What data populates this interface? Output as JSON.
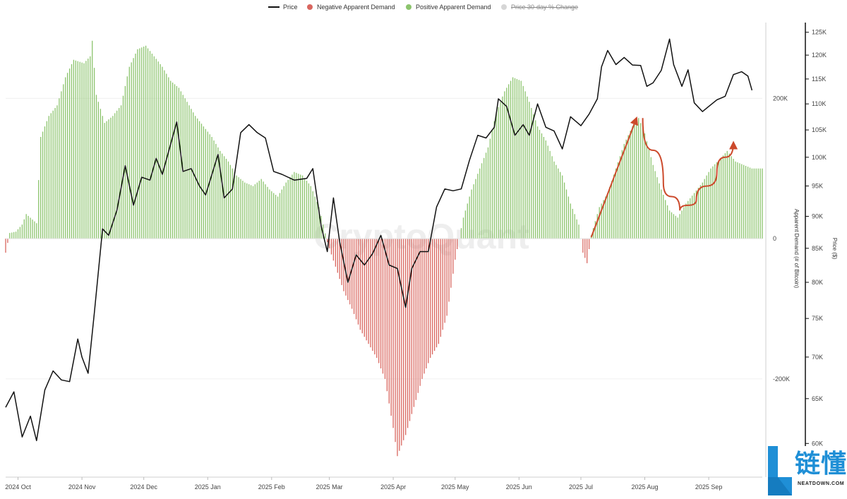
{
  "legend": {
    "price": "Price",
    "negative": "Negative Apparent Demand",
    "positive": "Positive Apparent Demand",
    "change": "Price 30-day % Change"
  },
  "colors": {
    "price": "#111111",
    "negative": "#d9665f",
    "positive": "#8cc46d",
    "change": "#cccccc",
    "annotation": "#cc4a2c",
    "brand": "#1f8fd6"
  },
  "watermark": "CryptoQuant",
  "brand": {
    "cn": "链懂",
    "en": "NEATDOWN.COM"
  },
  "chart_data": {
    "type": "bar+line",
    "x_range": [
      "2024-09-25",
      "2025-09-27"
    ],
    "x_ticks": [
      "2024 Oct",
      "2024 Nov",
      "2024 Dec",
      "2025 Jan",
      "2025 Feb",
      "2025 Mar",
      "2025 Apr",
      "2025 May",
      "2025 Jun",
      "2025 Jul",
      "2025 Aug",
      "2025 Sep"
    ],
    "left_axis": {
      "label": "Apparent Demand (# of Bitcoin)",
      "ticks": [
        "200K",
        "0",
        "-200K"
      ],
      "tick_values": [
        200000,
        0,
        -200000
      ],
      "range": [
        -340000,
        310000
      ]
    },
    "right_axis": {
      "label": "Price ($)",
      "ticks": [
        "125K",
        "120K",
        "115K",
        "110K",
        "105K",
        "100K",
        "95K",
        "90K",
        "85K",
        "80K",
        "75K",
        "70K",
        "65K",
        "60K"
      ],
      "tick_values": [
        125000,
        120000,
        115000,
        110000,
        105000,
        100000,
        95000,
        90000,
        85000,
        80000,
        75000,
        70000,
        65000,
        60000
      ],
      "scale": "log",
      "range": [
        56500,
        127500
      ]
    },
    "series": [
      {
        "name": "Price",
        "kind": "line",
        "points": [
          [
            "2024-09-25",
            64000
          ],
          [
            "2024-09-29",
            65800
          ],
          [
            "2024-10-03",
            60700
          ],
          [
            "2024-10-07",
            63000
          ],
          [
            "2024-10-10",
            60300
          ],
          [
            "2024-10-14",
            66000
          ],
          [
            "2024-10-18",
            68300
          ],
          [
            "2024-10-22",
            67200
          ],
          [
            "2024-10-26",
            67000
          ],
          [
            "2024-10-30",
            72300
          ],
          [
            "2024-11-01",
            70000
          ],
          [
            "2024-11-04",
            68000
          ],
          [
            "2024-11-07",
            75700
          ],
          [
            "2024-11-11",
            88000
          ],
          [
            "2024-11-14",
            87000
          ],
          [
            "2024-11-18",
            91000
          ],
          [
            "2024-11-22",
            98500
          ],
          [
            "2024-11-26",
            91800
          ],
          [
            "2024-11-30",
            96500
          ],
          [
            "2024-12-04",
            96000
          ],
          [
            "2024-12-07",
            99800
          ],
          [
            "2024-12-10",
            97000
          ],
          [
            "2024-12-13",
            101000
          ],
          [
            "2024-12-17",
            106500
          ],
          [
            "2024-12-20",
            97500
          ],
          [
            "2024-12-24",
            98000
          ],
          [
            "2024-12-28",
            95000
          ],
          [
            "2024-12-31",
            93500
          ],
          [
            "2025-01-06",
            100500
          ],
          [
            "2025-01-09",
            93000
          ],
          [
            "2025-01-13",
            94500
          ],
          [
            "2025-01-17",
            104500
          ],
          [
            "2025-01-21",
            106000
          ],
          [
            "2025-01-25",
            104500
          ],
          [
            "2025-01-29",
            103500
          ],
          [
            "2025-02-02",
            97500
          ],
          [
            "2025-02-06",
            97000
          ],
          [
            "2025-02-12",
            96000
          ],
          [
            "2025-02-18",
            96300
          ],
          [
            "2025-02-21",
            98000
          ],
          [
            "2025-02-25",
            88500
          ],
          [
            "2025-02-28",
            84500
          ],
          [
            "2025-03-03",
            93000
          ],
          [
            "2025-03-06",
            86000
          ],
          [
            "2025-03-10",
            80000
          ],
          [
            "2025-03-14",
            84000
          ],
          [
            "2025-03-18",
            82500
          ],
          [
            "2025-03-22",
            84200
          ],
          [
            "2025-03-26",
            87000
          ],
          [
            "2025-03-30",
            82500
          ],
          [
            "2025-04-03",
            82000
          ],
          [
            "2025-04-07",
            76500
          ],
          [
            "2025-04-10",
            82000
          ],
          [
            "2025-04-14",
            84500
          ],
          [
            "2025-04-18",
            84500
          ],
          [
            "2025-04-22",
            91500
          ],
          [
            "2025-04-26",
            94500
          ],
          [
            "2025-04-30",
            94200
          ],
          [
            "2025-05-04",
            94500
          ],
          [
            "2025-05-08",
            99500
          ],
          [
            "2025-05-12",
            104000
          ],
          [
            "2025-05-16",
            103500
          ],
          [
            "2025-05-20",
            105500
          ],
          [
            "2025-05-22",
            111000
          ],
          [
            "2025-05-26",
            109500
          ],
          [
            "2025-05-30",
            104000
          ],
          [
            "2025-06-03",
            106000
          ],
          [
            "2025-06-06",
            104000
          ],
          [
            "2025-06-10",
            110000
          ],
          [
            "2025-06-14",
            105500
          ],
          [
            "2025-06-18",
            104800
          ],
          [
            "2025-06-22",
            101500
          ],
          [
            "2025-06-26",
            107500
          ],
          [
            "2025-07-01",
            105800
          ],
          [
            "2025-07-05",
            108000
          ],
          [
            "2025-07-09",
            111000
          ],
          [
            "2025-07-11",
            117500
          ],
          [
            "2025-07-14",
            121000
          ],
          [
            "2025-07-18",
            118000
          ],
          [
            "2025-07-22",
            119500
          ],
          [
            "2025-07-26",
            117900
          ],
          [
            "2025-07-30",
            117800
          ],
          [
            "2025-08-02",
            113500
          ],
          [
            "2025-08-05",
            114200
          ],
          [
            "2025-08-09",
            116800
          ],
          [
            "2025-08-13",
            123500
          ],
          [
            "2025-08-15",
            118000
          ],
          [
            "2025-08-19",
            113500
          ],
          [
            "2025-08-22",
            116900
          ],
          [
            "2025-08-25",
            110200
          ],
          [
            "2025-08-29",
            108500
          ],
          [
            "2025-09-01",
            109500
          ],
          [
            "2025-09-05",
            110800
          ],
          [
            "2025-09-09",
            111500
          ],
          [
            "2025-09-13",
            115900
          ],
          [
            "2025-09-17",
            116500
          ],
          [
            "2025-09-20",
            115600
          ],
          [
            "2025-09-22",
            112700
          ]
        ]
      },
      {
        "name": "Apparent Demand (30-day)",
        "kind": "bar",
        "positive_series": "Positive Apparent Demand",
        "negative_series": "Negative Apparent Demand",
        "points": [
          [
            "2024-09-25",
            -20000
          ],
          [
            "2024-09-27",
            8000
          ],
          [
            "2024-09-30",
            10000
          ],
          [
            "2024-10-03",
            20000
          ],
          [
            "2024-10-05",
            35000
          ],
          [
            "2024-10-10",
            22000
          ],
          [
            "2024-10-12",
            145000
          ],
          [
            "2024-10-16",
            175000
          ],
          [
            "2024-10-20",
            190000
          ],
          [
            "2024-10-24",
            230000
          ],
          [
            "2024-10-28",
            255000
          ],
          [
            "2024-11-02",
            250000
          ],
          [
            "2024-11-05",
            260000
          ],
          [
            "2024-11-06",
            282000
          ],
          [
            "2024-11-08",
            205000
          ],
          [
            "2024-11-12",
            165000
          ],
          [
            "2024-11-16",
            175000
          ],
          [
            "2024-11-20",
            190000
          ],
          [
            "2024-11-24",
            245000
          ],
          [
            "2024-11-28",
            270000
          ],
          [
            "2024-12-02",
            275000
          ],
          [
            "2024-12-06",
            260000
          ],
          [
            "2024-12-10",
            245000
          ],
          [
            "2024-12-14",
            225000
          ],
          [
            "2024-12-18",
            215000
          ],
          [
            "2024-12-22",
            195000
          ],
          [
            "2024-12-26",
            175000
          ],
          [
            "2024-12-30",
            160000
          ],
          [
            "2025-01-03",
            145000
          ],
          [
            "2025-01-07",
            125000
          ],
          [
            "2025-01-11",
            110000
          ],
          [
            "2025-01-15",
            90000
          ],
          [
            "2025-01-19",
            80000
          ],
          [
            "2025-01-23",
            75000
          ],
          [
            "2025-01-27",
            85000
          ],
          [
            "2025-01-31",
            70000
          ],
          [
            "2025-02-04",
            60000
          ],
          [
            "2025-02-08",
            80000
          ],
          [
            "2025-02-12",
            95000
          ],
          [
            "2025-02-16",
            90000
          ],
          [
            "2025-02-20",
            75000
          ],
          [
            "2025-02-24",
            45000
          ],
          [
            "2025-02-28",
            -5000
          ],
          [
            "2025-03-04",
            -40000
          ],
          [
            "2025-03-08",
            -75000
          ],
          [
            "2025-03-12",
            -100000
          ],
          [
            "2025-03-16",
            -130000
          ],
          [
            "2025-03-20",
            -150000
          ],
          [
            "2025-03-24",
            -170000
          ],
          [
            "2025-03-28",
            -200000
          ],
          [
            "2025-04-01",
            -270000
          ],
          [
            "2025-04-03",
            -310000
          ],
          [
            "2025-04-07",
            -280000
          ],
          [
            "2025-04-11",
            -240000
          ],
          [
            "2025-04-15",
            -200000
          ],
          [
            "2025-04-19",
            -170000
          ],
          [
            "2025-04-23",
            -150000
          ],
          [
            "2025-04-27",
            -110000
          ],
          [
            "2025-05-01",
            -30000
          ],
          [
            "2025-05-05",
            30000
          ],
          [
            "2025-05-09",
            70000
          ],
          [
            "2025-05-13",
            100000
          ],
          [
            "2025-05-17",
            130000
          ],
          [
            "2025-05-21",
            180000
          ],
          [
            "2025-05-25",
            210000
          ],
          [
            "2025-05-29",
            230000
          ],
          [
            "2025-06-02",
            225000
          ],
          [
            "2025-06-06",
            195000
          ],
          [
            "2025-06-10",
            160000
          ],
          [
            "2025-06-14",
            140000
          ],
          [
            "2025-06-18",
            110000
          ],
          [
            "2025-06-22",
            90000
          ],
          [
            "2025-06-26",
            50000
          ],
          [
            "2025-06-30",
            20000
          ],
          [
            "2025-07-02",
            -20000
          ],
          [
            "2025-07-04",
            -35000
          ],
          [
            "2025-07-06",
            5000
          ],
          [
            "2025-07-10",
            45000
          ],
          [
            "2025-07-14",
            65000
          ],
          [
            "2025-07-18",
            100000
          ],
          [
            "2025-07-22",
            135000
          ],
          [
            "2025-07-26",
            160000
          ],
          [
            "2025-07-29",
            172000
          ],
          [
            "2025-08-01",
            150000
          ],
          [
            "2025-08-05",
            105000
          ],
          [
            "2025-08-09",
            70000
          ],
          [
            "2025-08-13",
            40000
          ],
          [
            "2025-08-17",
            30000
          ],
          [
            "2025-08-21",
            50000
          ],
          [
            "2025-08-25",
            65000
          ],
          [
            "2025-08-29",
            80000
          ],
          [
            "2025-09-02",
            100000
          ],
          [
            "2025-09-06",
            112000
          ],
          [
            "2025-09-10",
            125000
          ],
          [
            "2025-09-14",
            110000
          ],
          [
            "2025-09-18",
            105000
          ],
          [
            "2025-09-22",
            100000
          ]
        ]
      }
    ],
    "annotations": [
      {
        "kind": "arrow",
        "points": [
          [
            "2025-07-06",
            2000
          ],
          [
            "2025-07-28",
            172000
          ]
        ]
      },
      {
        "kind": "curved-arrow",
        "points": [
          [
            "2025-07-31",
            172000
          ],
          [
            "2025-08-10",
            80000
          ],
          [
            "2025-08-18",
            40000
          ],
          [
            "2025-08-26",
            55000
          ],
          [
            "2025-09-05",
            95000
          ],
          [
            "2025-09-13",
            137000
          ]
        ]
      }
    ]
  }
}
